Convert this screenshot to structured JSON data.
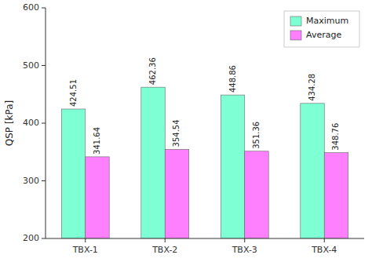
{
  "chart_data": {
    "type": "bar",
    "categories": [
      "TBX-1",
      "TBX-2",
      "TBX-3",
      "TBX-4"
    ],
    "series": [
      {
        "name": "Maximum",
        "color": "#7FFFD4",
        "values": [
          424.51,
          462.36,
          448.86,
          434.28
        ]
      },
      {
        "name": "Average",
        "color": "#FF80FF",
        "values": [
          341.64,
          354.54,
          351.36,
          348.76
        ]
      }
    ],
    "y_label": "QSP [kPa]",
    "ylim": [
      200,
      600
    ],
    "yticks": [
      200,
      300,
      400,
      500,
      600
    ],
    "data_labels": true,
    "legend": "upper right",
    "grid": false
  }
}
